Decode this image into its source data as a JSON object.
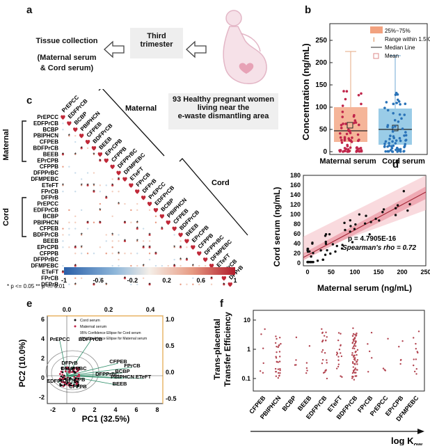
{
  "panel_a": {
    "label": "a",
    "collection_title": "Tissue collection",
    "collection_detail_1": "(Maternal serum",
    "collection_detail_2": "& Cord serum)",
    "trimester_1": "Third",
    "trimester_2": "trimester",
    "cohort_1": "93 Healthy pregnant women",
    "cohort_2": "living near the",
    "cohort_3": "e-waste dismantling area"
  },
  "panel_b": {
    "label": "b",
    "ylabel": "Concentration (ng/mL)",
    "yticks": [
      "0",
      "50",
      "100",
      "150",
      "200",
      "250"
    ],
    "categories": [
      "Maternal serum",
      "Cord serum"
    ],
    "legend": [
      "25%~75%",
      "Range within 1.5IQR",
      "Median Line",
      "Mean"
    ],
    "colors": {
      "maternal": "#f2a27f",
      "cord": "#8fc6e4",
      "maternal_dot": "#c0254a",
      "cord_dot": "#2a73b8"
    }
  },
  "panel_c": {
    "label": "c",
    "group_maternal": "Maternal",
    "group_cord": "Cord",
    "compounds": [
      "PrEPCC",
      "EDFPrCB",
      "BCBP",
      "PBIPHCN",
      "CFPEB",
      "BDFPrCB",
      "BEEB",
      "EPrCPB",
      "CFPPB",
      "DFPPrBC",
      "DFMPEBC",
      "ETeFT",
      "FPrCB",
      "DFPrB"
    ],
    "colorbar_ticks": [
      "-1",
      "-0.6",
      "-0.2",
      "0.2",
      "0.6",
      "1"
    ],
    "footnote": "* p <= 0.05 ** p <= 0.01"
  },
  "panel_d": {
    "label": "d",
    "xlabel": "Maternal serum (ng/mL)",
    "ylabel": "Cord serum (ng/mL)",
    "xticks": [
      "0",
      "50",
      "100",
      "150",
      "200",
      "250"
    ],
    "yticks": [
      "0",
      "20",
      "40",
      "60",
      "80",
      "100",
      "120",
      "140",
      "160",
      "180"
    ],
    "p_text": "p = 4.7905E-16",
    "rho_text": "Spearman's rho = 0.72"
  },
  "panel_e": {
    "label": "e",
    "xlabel": "PC1 (32.5%)",
    "ylabel": "PC2 (10.0%)",
    "bottom_ticks": [
      "-2",
      "0",
      "2",
      "4",
      "6",
      "8"
    ],
    "top_ticks": [
      "0.0",
      "0.2",
      "0.4"
    ],
    "right_ticks": [
      "1.0",
      "0.5",
      "0.0",
      "-0.5"
    ],
    "left_ticks": [
      "6",
      "4",
      "2",
      "0",
      "-2"
    ],
    "legend": [
      "Cord serum",
      "Maternal serum",
      "95% Confidence Ellipse for Cord serum",
      "95% Confidence Ellipse for Maternal serum"
    ],
    "loading_labels": [
      "PrEPCC",
      "BDFPrCB",
      "DFPrB",
      "DFMPEBC",
      "EPrCPB",
      "EDFPrCB",
      "CFPPB",
      "CFPEB",
      "FPrCB",
      "BCBP",
      "DFPPrBC",
      "ETeFT",
      "PBIPHCN",
      "BEEB"
    ]
  },
  "panel_f": {
    "label": "f",
    "ylabel_1": "Trans-placental",
    "ylabel_2": "Transfer Efficiency",
    "yticks": [
      "10",
      "1",
      "0.1"
    ],
    "categories": [
      "CFPEB",
      "PBIPHCN",
      "BCBP",
      "BEEB",
      "EDFPrCB",
      "ETeFT",
      "BDFPrCB",
      "FPrCB",
      "PrEPCC",
      "EPrCPB",
      "DFMPEBC"
    ],
    "xlabel": "log K",
    "xlabel_sub": "ow",
    "dot_color": "#b24450"
  }
}
